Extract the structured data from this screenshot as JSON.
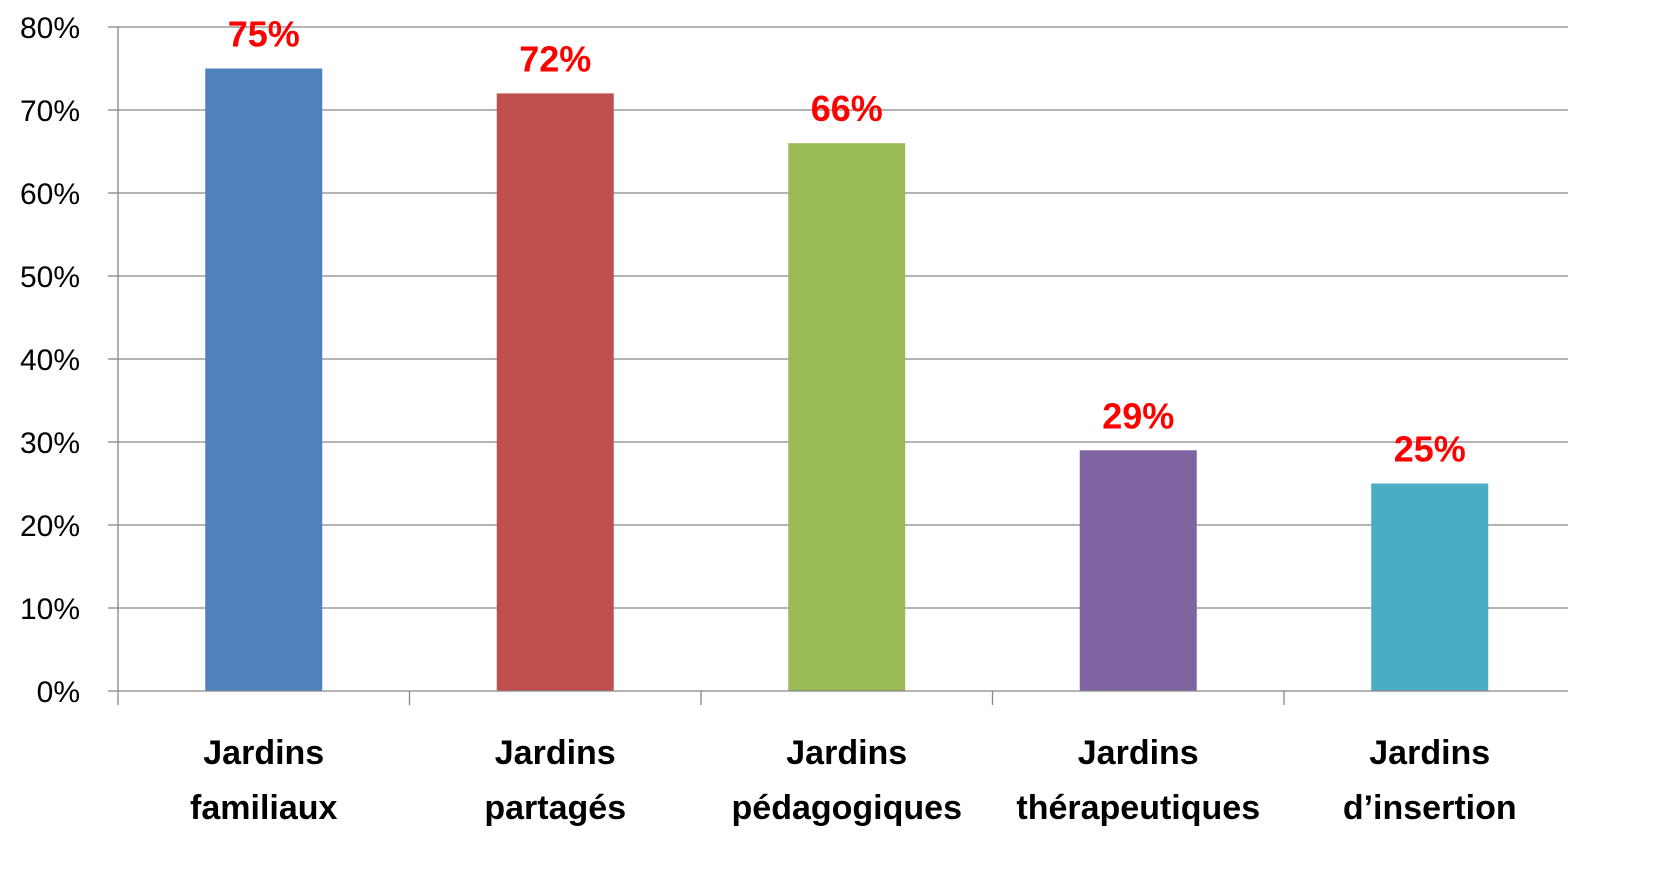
{
  "chart_data": {
    "type": "bar",
    "categories": [
      [
        "Jardins",
        "familiaux"
      ],
      [
        "Jardins",
        "partagés"
      ],
      [
        "Jardins",
        "pédagogiques"
      ],
      [
        "Jardins",
        "thérapeutiques"
      ],
      [
        "Jardins",
        "d’insertion"
      ]
    ],
    "values": [
      75,
      72,
      66,
      29,
      25
    ],
    "data_labels": [
      "75%",
      "72%",
      "66%",
      "29%",
      "25%"
    ],
    "bar_colors": [
      "#4f81bd",
      "#c0504d",
      "#9bbb59",
      "#8064a2",
      "#4bacc6"
    ],
    "data_label_color": "#ff0000",
    "y_ticks": [
      "0%",
      "10%",
      "20%",
      "30%",
      "40%",
      "50%",
      "60%",
      "70%",
      "80%"
    ],
    "ylim": [
      0,
      80
    ],
    "grid": true,
    "legend": "none",
    "title": "",
    "xlabel": "",
    "ylabel": ""
  }
}
